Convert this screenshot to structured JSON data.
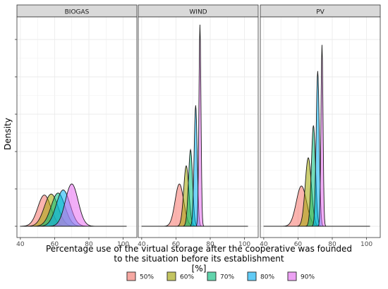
{
  "chart_data": {
    "type": "area",
    "ylabel": "Density",
    "xlabel_lines": [
      "Percentage use of the virtual storage after the cooperative was founded",
      "to the situation before its establishment",
      "[%]"
    ],
    "xlim": [
      38,
      108
    ],
    "x_ticks": [
      40,
      60,
      80,
      100
    ],
    "grid": true,
    "legend_position": "bottom",
    "legend": [
      {
        "label": "50%",
        "color": "#F8766D"
      },
      {
        "label": "60%",
        "color": "#A3A500"
      },
      {
        "label": "70%",
        "color": "#00BF7D"
      },
      {
        "label": "80%",
        "color": "#00B0F6"
      },
      {
        "label": "90%",
        "color": "#E76BF3"
      }
    ],
    "panels": [
      {
        "title": "BIOGAS",
        "series": [
          {
            "name": "50%",
            "mean": 54,
            "sd": 3.8,
            "peak": 0.155
          },
          {
            "name": "60%",
            "mean": 58,
            "sd": 4.0,
            "peak": 0.16
          },
          {
            "name": "70%",
            "mean": 62,
            "sd": 4.0,
            "peak": 0.165
          },
          {
            "name": "80%",
            "mean": 65,
            "sd": 4.0,
            "peak": 0.18
          },
          {
            "name": "90%",
            "mean": 70,
            "sd": 3.7,
            "peak": 0.21
          }
        ]
      },
      {
        "title": "WIND",
        "series": [
          {
            "name": "50%",
            "mean": 62,
            "sd": 2.5,
            "peak": 0.21
          },
          {
            "name": "60%",
            "mean": 66,
            "sd": 1.5,
            "peak": 0.3
          },
          {
            "name": "70%",
            "mean": 68.5,
            "sd": 1.2,
            "peak": 0.38
          },
          {
            "name": "80%",
            "mean": 71.5,
            "sd": 0.9,
            "peak": 0.6
          },
          {
            "name": "90%",
            "mean": 74,
            "sd": 0.6,
            "peak": 1.0
          }
        ]
      },
      {
        "title": "PV",
        "series": [
          {
            "name": "50%",
            "mean": 62,
            "sd": 3.0,
            "peak": 0.2
          },
          {
            "name": "60%",
            "mean": 66,
            "sd": 1.8,
            "peak": 0.34
          },
          {
            "name": "70%",
            "mean": 69,
            "sd": 1.2,
            "peak": 0.5
          },
          {
            "name": "80%",
            "mean": 71.5,
            "sd": 0.9,
            "peak": 0.77
          },
          {
            "name": "90%",
            "mean": 74,
            "sd": 0.6,
            "peak": 0.9
          }
        ]
      }
    ]
  }
}
